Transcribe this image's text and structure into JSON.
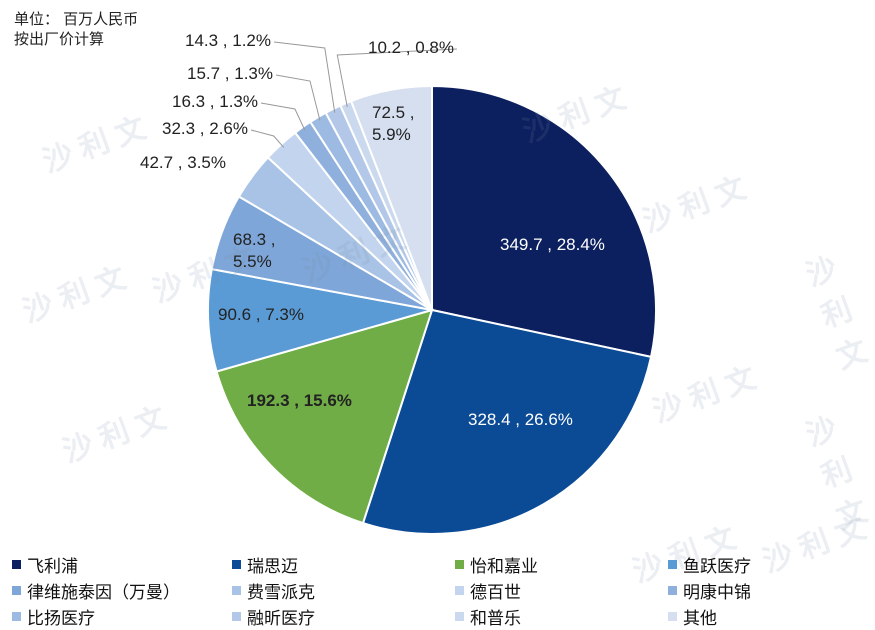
{
  "chart_data": {
    "type": "pie",
    "notes": [
      "单位： 百万人民币",
      "按出厂价计算"
    ],
    "watermark": "沙 利 文",
    "categories": [
      "飞利浦",
      "瑞思迈",
      "怡和嘉业",
      "鱼跃医疗",
      "律维施泰因（万曼）",
      "费雪派克",
      "德百世",
      "明康中锦",
      "比扬医疗",
      "融昕医疗",
      "和普乐",
      "其他"
    ],
    "values": [
      349.7,
      328.4,
      192.3,
      90.6,
      68.3,
      42.7,
      32.3,
      16.3,
      15.7,
      14.3,
      10.2,
      72.5
    ],
    "value_labels": [
      "349.7 , 28.4%",
      "328.4 , 26.6%",
      "192.3 , 15.6%",
      "90.6 , 7.3%",
      "68.3 , 5.5%",
      "42.7 , 3.5%",
      "32.3 , 2.6%",
      "16.3 , 1.3%",
      "15.7 , 1.3%",
      "14.3 , 1.2%",
      "10.2 , 0.8%",
      "72.5 , 5.9%"
    ],
    "colors": [
      "#0c1f5e",
      "#0b4a95",
      "#70ad47",
      "#5b9bd5",
      "#7ea6d8",
      "#a9c3e6",
      "#c3d5ee",
      "#8fb0dc",
      "#9dbbe2",
      "#b3c8e8",
      "#cbd9ef",
      "#d5dff0"
    ],
    "legend": "bottom"
  }
}
